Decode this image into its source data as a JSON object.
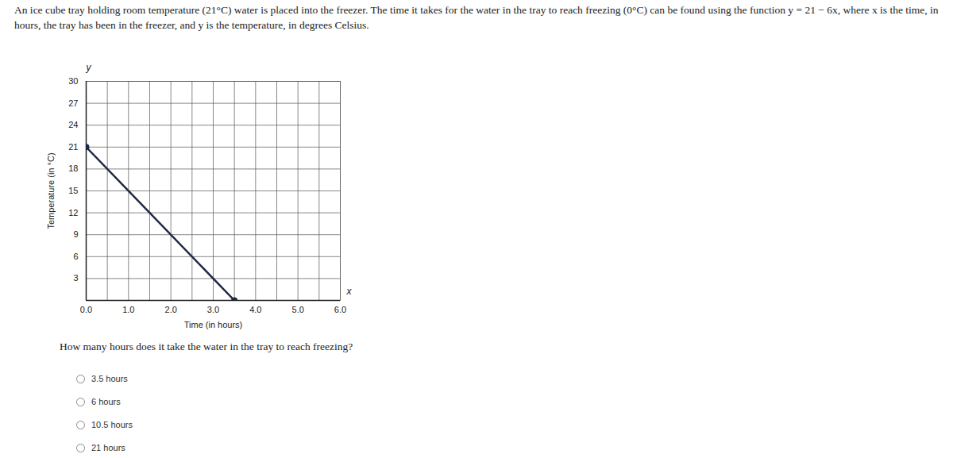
{
  "intro": "An ice cube tray holding room temperature (21°C) water is placed into the freezer. The time it takes for the water in the tray to reach freezing (0°C) can be found using the function y = 21 − 6x, where x is the time, in hours, the tray has been in the freezer, and y is the temperature, in degrees Celsius.",
  "chart_data": {
    "type": "line",
    "x_label": "Time (in hours)",
    "y_label": "Temperature (in °C)",
    "axis_symbols": {
      "x": "x",
      "y": "y"
    },
    "x": [
      0,
      3.5
    ],
    "values": [
      21,
      0
    ],
    "color": "#1e2a44",
    "marker": "circle",
    "line_style": "solid",
    "xlim": [
      0,
      6
    ],
    "xticks": [
      0,
      1,
      2,
      3,
      4,
      5,
      6
    ],
    "ylim": [
      0,
      30
    ],
    "yticks": [
      3,
      6,
      9,
      12,
      15,
      18,
      21,
      24,
      27,
      30
    ],
    "grid": true
  },
  "question": "How many hours does it take the water in the tray to reach freezing?",
  "options": [
    "3.5 hours",
    "6 hours",
    "10.5 hours",
    "21 hours"
  ]
}
